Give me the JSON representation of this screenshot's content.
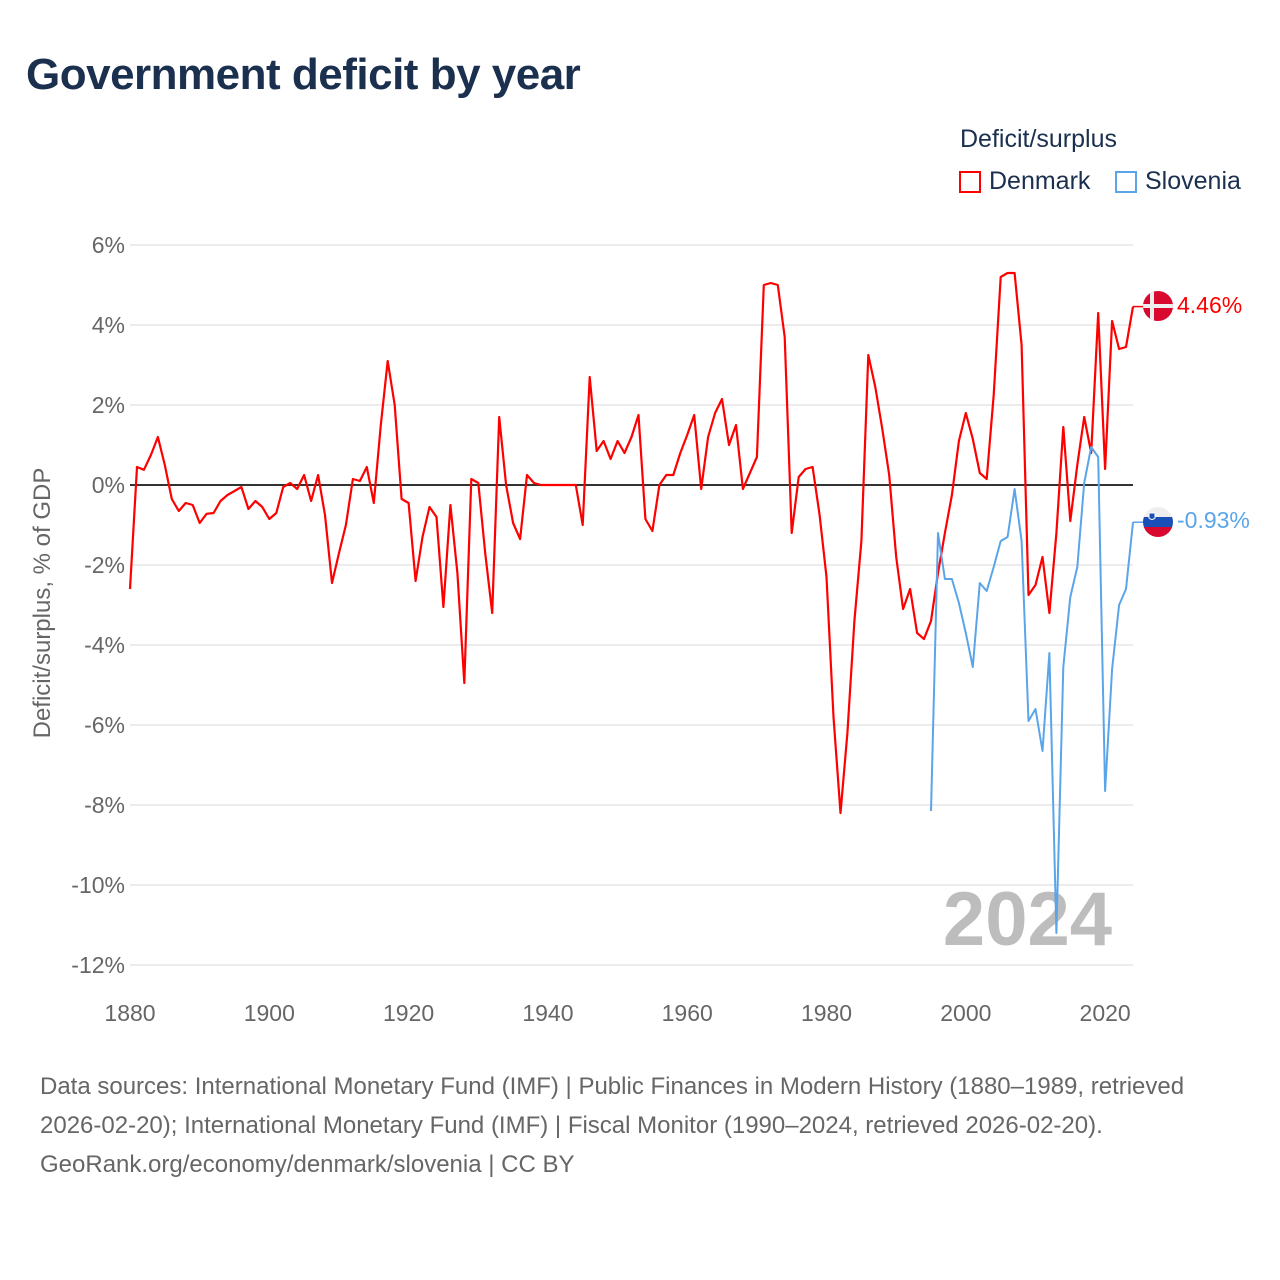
{
  "title": "Government deficit by year",
  "legend": {
    "title": "Deficit/surplus",
    "items": [
      {
        "label": "Denmark",
        "color": "#ff0000"
      },
      {
        "label": "Slovenia",
        "color": "#5aa5ea"
      }
    ]
  },
  "year_watermark": "2024",
  "end_labels": {
    "denmark": "4.46%",
    "slovenia": "-0.93%"
  },
  "footer": {
    "sources": "Data sources: International Monetary Fund (IMF) | Public Finances in Modern History (1880–1989, retrieved 2026-02-20); International Monetary Fund (IMF) | Fiscal Monitor (1990–2024, retrieved 2026-02-20).",
    "credit": "GeoRank.org/economy/denmark/slovenia | CC BY"
  },
  "chart_data": {
    "type": "line",
    "title": "Government deficit by year",
    "xlabel": "",
    "ylabel": "Deficit/surplus, % of GDP",
    "xlim": [
      1880,
      2024
    ],
    "ylim": [
      -12,
      6
    ],
    "x_ticks": [
      "1880",
      "1900",
      "1920",
      "1940",
      "1960",
      "1980",
      "2000",
      "2020"
    ],
    "x_tick_values": [
      1880,
      1900,
      1920,
      1940,
      1960,
      1980,
      2000,
      2020
    ],
    "y_ticks": [
      "6%",
      "4%",
      "2%",
      "0%",
      "-2%",
      "-4%",
      "-6%",
      "-8%",
      "-10%",
      "-12%"
    ],
    "y_tick_values": [
      6,
      4,
      2,
      0,
      -2,
      -4,
      -6,
      -8,
      -10,
      -12
    ],
    "grid": true,
    "legend_position": "top-right",
    "series": [
      {
        "name": "Denmark",
        "color": "#ff0000",
        "start_year": 1880,
        "values": [
          -2.6,
          0.45,
          0.38,
          0.75,
          1.2,
          0.5,
          -0.35,
          -0.65,
          -0.45,
          -0.5,
          -0.95,
          -0.72,
          -0.7,
          -0.4,
          -0.25,
          -0.15,
          -0.05,
          -0.6,
          -0.4,
          -0.55,
          -0.85,
          -0.7,
          -0.05,
          0.05,
          -0.1,
          0.25,
          -0.4,
          0.25,
          -0.75,
          -2.45,
          -1.7,
          -1.0,
          0.15,
          0.1,
          0.45,
          -0.45,
          1.5,
          3.1,
          2.0,
          -0.35,
          -0.45,
          -2.4,
          -1.3,
          -0.55,
          -0.8,
          -3.05,
          -0.5,
          -2.2,
          -4.95,
          0.15,
          0.05,
          -1.7,
          -3.2,
          1.7,
          0.0,
          -0.95,
          -1.35,
          0.25,
          0.05,
          0,
          0,
          0,
          0,
          0,
          0,
          -1.0,
          2.7,
          0.85,
          1.1,
          0.65,
          1.1,
          0.8,
          1.2,
          1.75,
          -0.85,
          -1.15,
          0.0,
          0.25,
          0.25,
          0.8,
          1.25,
          1.75,
          -0.1,
          1.2,
          1.8,
          2.15,
          1.0,
          1.5,
          -0.1,
          0.3,
          0.7,
          5.0,
          5.05,
          5.0,
          3.7,
          -1.2,
          0.2,
          0.4,
          0.45,
          -0.75,
          -2.3,
          -5.8,
          -8.2,
          -6.2,
          -3.4,
          -1.4,
          3.25,
          2.45,
          1.4,
          0.25,
          -1.8,
          -3.1,
          -2.6,
          -3.7,
          -3.85,
          -3.4,
          -2.2,
          -1.2,
          -0.25,
          1.1,
          1.8,
          1.15,
          0.3,
          0.15,
          2.25,
          5.2,
          5.3,
          5.3,
          3.5,
          -2.75,
          -2.5,
          -1.8,
          -3.2,
          -1.2,
          1.45,
          -0.9,
          0.5,
          1.7,
          0.8,
          4.3,
          0.4,
          4.1,
          3.4,
          3.45,
          4.46
        ]
      },
      {
        "name": "Slovenia",
        "color": "#5aa5ea",
        "start_year": 1995,
        "values": [
          -8.15,
          -1.2,
          -2.35,
          -2.35,
          -2.95,
          -3.7,
          -4.55,
          -2.45,
          -2.65,
          -2.05,
          -1.4,
          -1.3,
          -0.1,
          -1.4,
          -5.9,
          -5.6,
          -6.65,
          -4.2,
          -11.2,
          -4.55,
          -2.8,
          -2.05,
          0.05,
          0.95,
          0.7,
          -7.65,
          -4.6,
          -3.0,
          -2.6,
          -0.93
        ]
      }
    ]
  }
}
